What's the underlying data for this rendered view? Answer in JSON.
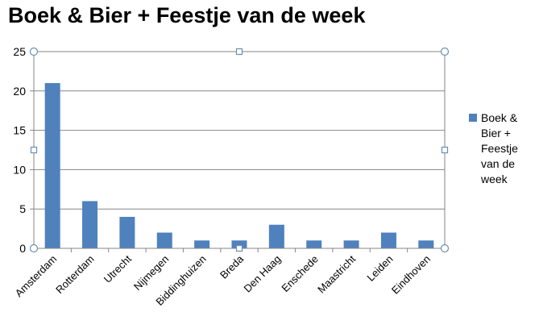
{
  "chart_data": {
    "type": "bar",
    "title": "Boek & Bier + Feestje van de week",
    "xlabel": "",
    "ylabel": "",
    "categories": [
      "Amsterdam",
      "Rotterdam",
      "Utrecht",
      "Nijmegen",
      "Biddinghuizen",
      "Breda",
      "Den Haag",
      "Enschede",
      "Maastricht",
      "Leiden",
      "Eindhoven"
    ],
    "series": [
      {
        "name": "Boek & Bier + Feestje van de week",
        "values": [
          21,
          6,
          4,
          2,
          1,
          1,
          3,
          1,
          1,
          2,
          1
        ],
        "color": "#4f81bd"
      }
    ],
    "ylim": [
      0,
      25
    ],
    "yticks": [
      0,
      5,
      10,
      15,
      20,
      25
    ],
    "grid": true,
    "legend": "right"
  }
}
